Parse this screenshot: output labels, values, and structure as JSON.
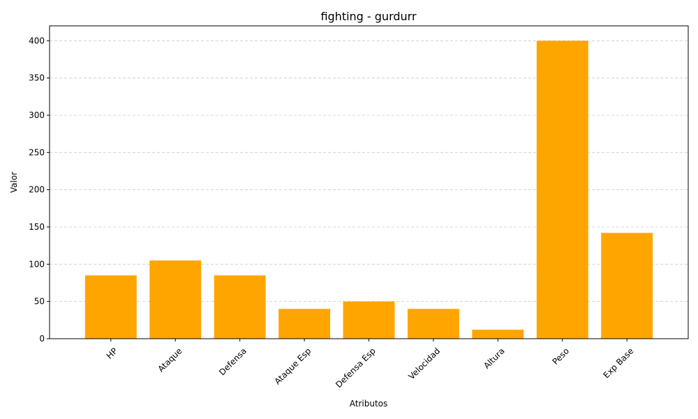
{
  "chart_data": {
    "type": "bar",
    "title": "fighting - gurdurr",
    "xlabel": "Atributos",
    "ylabel": "Valor",
    "categories": [
      "HP",
      "Ataque",
      "Defensa",
      "Ataque Esp",
      "Defensa Esp",
      "Velocidad",
      "Altura",
      "Peso",
      "Exp Base"
    ],
    "values": [
      85,
      105,
      85,
      40,
      50,
      40,
      12,
      400,
      142
    ],
    "ylim": [
      0,
      420
    ],
    "yticks": [
      0,
      50,
      100,
      150,
      200,
      250,
      300,
      350,
      400
    ],
    "bar_color": "#FFA500",
    "grid": "y-dashed"
  }
}
